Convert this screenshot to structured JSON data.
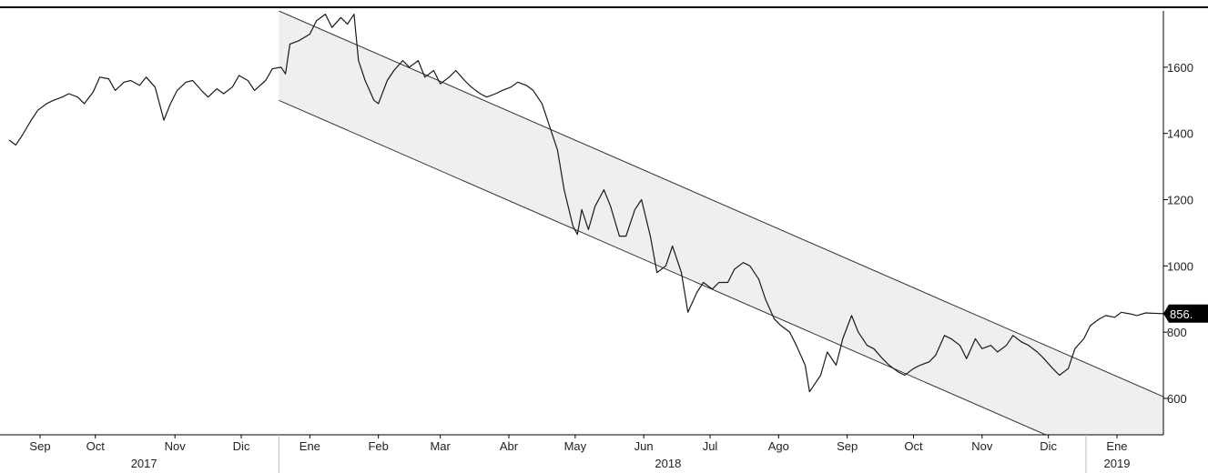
{
  "chart_data": {
    "type": "line",
    "title": "",
    "xlabel": "",
    "ylabel": "",
    "x_range": [
      "2017-09-01",
      "2019-02-05"
    ],
    "ylim": [
      490,
      1770
    ],
    "y_axis_position": "right",
    "yticks": [
      600,
      800,
      1000,
      1200,
      1400,
      1600
    ],
    "ytick_labels": [
      "600",
      "800",
      "1000",
      "1200",
      "1400",
      "1600"
    ],
    "x_month_ticks": [
      {
        "date": "2017-09-15",
        "label": "Sep"
      },
      {
        "date": "2017-10-10",
        "label": "Oct"
      },
      {
        "date": "2017-11-15",
        "label": "Nov"
      },
      {
        "date": "2017-12-15",
        "label": "Dic"
      },
      {
        "date": "2018-01-15",
        "label": "Ene"
      },
      {
        "date": "2018-02-15",
        "label": "Feb"
      },
      {
        "date": "2018-03-15",
        "label": "Mar"
      },
      {
        "date": "2018-04-15",
        "label": "Abr"
      },
      {
        "date": "2018-05-15",
        "label": "May"
      },
      {
        "date": "2018-06-15",
        "label": "Jun"
      },
      {
        "date": "2018-07-15",
        "label": "Jul"
      },
      {
        "date": "2018-08-15",
        "label": "Ago"
      },
      {
        "date": "2018-09-15",
        "label": "Sep"
      },
      {
        "date": "2018-10-15",
        "label": "Oct"
      },
      {
        "date": "2018-11-15",
        "label": "Nov"
      },
      {
        "date": "2018-12-15",
        "label": "Dic"
      },
      {
        "date": "2019-01-15",
        "label": "Ene"
      }
    ],
    "x_year_labels": [
      {
        "date": "2017-11-01",
        "label": "2017"
      },
      {
        "date": "2018-06-26",
        "label": "2018"
      },
      {
        "date": "2019-01-15",
        "label": "2019"
      }
    ],
    "year_separators": [
      "2018-01-01",
      "2019-01-01"
    ],
    "grid": false,
    "legend": "none",
    "last_value_label": "856.",
    "series": [
      {
        "color": "#1a1a1a",
        "points": [
          [
            "2017-09-01",
            1380
          ],
          [
            "2017-09-04",
            1365
          ],
          [
            "2017-09-07",
            1395
          ],
          [
            "2017-09-11",
            1440
          ],
          [
            "2017-09-14",
            1470
          ],
          [
            "2017-09-18",
            1490
          ],
          [
            "2017-09-21",
            1500
          ],
          [
            "2017-09-25",
            1510
          ],
          [
            "2017-09-28",
            1520
          ],
          [
            "2017-10-02",
            1510
          ],
          [
            "2017-10-05",
            1490
          ],
          [
            "2017-10-09",
            1525
          ],
          [
            "2017-10-12",
            1570
          ],
          [
            "2017-10-16",
            1565
          ],
          [
            "2017-10-19",
            1530
          ],
          [
            "2017-10-23",
            1555
          ],
          [
            "2017-10-26",
            1560
          ],
          [
            "2017-10-30",
            1545
          ],
          [
            "2017-11-02",
            1570
          ],
          [
            "2017-11-06",
            1540
          ],
          [
            "2017-11-08",
            1490
          ],
          [
            "2017-11-10",
            1440
          ],
          [
            "2017-11-13",
            1490
          ],
          [
            "2017-11-16",
            1530
          ],
          [
            "2017-11-20",
            1555
          ],
          [
            "2017-11-23",
            1560
          ],
          [
            "2017-11-27",
            1530
          ],
          [
            "2017-11-30",
            1510
          ],
          [
            "2017-12-04",
            1535
          ],
          [
            "2017-12-07",
            1520
          ],
          [
            "2017-12-11",
            1540
          ],
          [
            "2017-12-14",
            1575
          ],
          [
            "2017-12-18",
            1560
          ],
          [
            "2017-12-21",
            1530
          ],
          [
            "2017-12-26",
            1560
          ],
          [
            "2017-12-29",
            1595
          ],
          [
            "2018-01-02",
            1600
          ],
          [
            "2018-01-04",
            1580
          ],
          [
            "2018-01-06",
            1670
          ],
          [
            "2018-01-10",
            1680
          ],
          [
            "2018-01-15",
            1700
          ],
          [
            "2018-01-18",
            1740
          ],
          [
            "2018-01-22",
            1760
          ],
          [
            "2018-01-25",
            1720
          ],
          [
            "2018-01-29",
            1750
          ],
          [
            "2018-02-01",
            1730
          ],
          [
            "2018-02-04",
            1760
          ],
          [
            "2018-02-06",
            1620
          ],
          [
            "2018-02-09",
            1560
          ],
          [
            "2018-02-13",
            1500
          ],
          [
            "2018-02-15",
            1490
          ],
          [
            "2018-02-19",
            1560
          ],
          [
            "2018-02-22",
            1590
          ],
          [
            "2018-02-26",
            1620
          ],
          [
            "2018-03-01",
            1600
          ],
          [
            "2018-03-05",
            1620
          ],
          [
            "2018-03-08",
            1570
          ],
          [
            "2018-03-12",
            1590
          ],
          [
            "2018-03-15",
            1550
          ],
          [
            "2018-03-19",
            1570
          ],
          [
            "2018-03-22",
            1590
          ],
          [
            "2018-03-26",
            1560
          ],
          [
            "2018-03-29",
            1540
          ],
          [
            "2018-04-02",
            1520
          ],
          [
            "2018-04-05",
            1510
          ],
          [
            "2018-04-09",
            1520
          ],
          [
            "2018-04-12",
            1530
          ],
          [
            "2018-04-16",
            1540
          ],
          [
            "2018-04-19",
            1555
          ],
          [
            "2018-04-23",
            1545
          ],
          [
            "2018-04-26",
            1530
          ],
          [
            "2018-04-30",
            1490
          ],
          [
            "2018-05-03",
            1430
          ],
          [
            "2018-05-07",
            1350
          ],
          [
            "2018-05-10",
            1230
          ],
          [
            "2018-05-14",
            1120
          ],
          [
            "2018-05-16",
            1095
          ],
          [
            "2018-05-18",
            1170
          ],
          [
            "2018-05-21",
            1110
          ],
          [
            "2018-05-24",
            1180
          ],
          [
            "2018-05-28",
            1230
          ],
          [
            "2018-05-31",
            1180
          ],
          [
            "2018-06-04",
            1090
          ],
          [
            "2018-06-07",
            1090
          ],
          [
            "2018-06-11",
            1170
          ],
          [
            "2018-06-14",
            1200
          ],
          [
            "2018-06-18",
            1090
          ],
          [
            "2018-06-21",
            980
          ],
          [
            "2018-06-25",
            1000
          ],
          [
            "2018-06-28",
            1060
          ],
          [
            "2018-07-02",
            980
          ],
          [
            "2018-07-05",
            860
          ],
          [
            "2018-07-09",
            920
          ],
          [
            "2018-07-12",
            950
          ],
          [
            "2018-07-16",
            930
          ],
          [
            "2018-07-19",
            950
          ],
          [
            "2018-07-23",
            950
          ],
          [
            "2018-07-26",
            990
          ],
          [
            "2018-07-30",
            1010
          ],
          [
            "2018-08-02",
            1000
          ],
          [
            "2018-08-06",
            960
          ],
          [
            "2018-08-09",
            900
          ],
          [
            "2018-08-13",
            840
          ],
          [
            "2018-08-16",
            820
          ],
          [
            "2018-08-20",
            800
          ],
          [
            "2018-08-23",
            760
          ],
          [
            "2018-08-27",
            700
          ],
          [
            "2018-08-29",
            620
          ],
          [
            "2018-09-03",
            670
          ],
          [
            "2018-09-06",
            740
          ],
          [
            "2018-09-10",
            700
          ],
          [
            "2018-09-13",
            780
          ],
          [
            "2018-09-17",
            850
          ],
          [
            "2018-09-20",
            800
          ],
          [
            "2018-09-24",
            760
          ],
          [
            "2018-09-27",
            750
          ],
          [
            "2018-10-01",
            720
          ],
          [
            "2018-10-04",
            700
          ],
          [
            "2018-10-08",
            680
          ],
          [
            "2018-10-11",
            670
          ],
          [
            "2018-10-15",
            690
          ],
          [
            "2018-10-18",
            700
          ],
          [
            "2018-10-22",
            710
          ],
          [
            "2018-10-25",
            730
          ],
          [
            "2018-10-29",
            790
          ],
          [
            "2018-11-01",
            780
          ],
          [
            "2018-11-05",
            760
          ],
          [
            "2018-11-08",
            720
          ],
          [
            "2018-11-12",
            780
          ],
          [
            "2018-11-15",
            750
          ],
          [
            "2018-11-19",
            760
          ],
          [
            "2018-11-22",
            740
          ],
          [
            "2018-11-26",
            760
          ],
          [
            "2018-11-29",
            790
          ],
          [
            "2018-12-03",
            770
          ],
          [
            "2018-12-06",
            760
          ],
          [
            "2018-12-10",
            740
          ],
          [
            "2018-12-13",
            720
          ],
          [
            "2018-12-17",
            690
          ],
          [
            "2018-12-20",
            670
          ],
          [
            "2018-12-24",
            690
          ],
          [
            "2018-12-27",
            750
          ],
          [
            "2018-12-31",
            780
          ],
          [
            "2019-01-03",
            820
          ],
          [
            "2019-01-07",
            840
          ],
          [
            "2019-01-10",
            850
          ],
          [
            "2019-01-14",
            845
          ],
          [
            "2019-01-17",
            860
          ],
          [
            "2019-01-21",
            855
          ],
          [
            "2019-01-24",
            850
          ],
          [
            "2019-01-28",
            858
          ],
          [
            "2019-01-31",
            857
          ],
          [
            "2019-02-05",
            856
          ]
        ]
      }
    ],
    "channel": {
      "start": "2018-01-01",
      "end": "2019-02-05",
      "upper_start_value": 1770,
      "upper_end_value": 605,
      "lower_start_value": 1500,
      "lower_end_value": 335,
      "fill": "#efefef"
    }
  }
}
